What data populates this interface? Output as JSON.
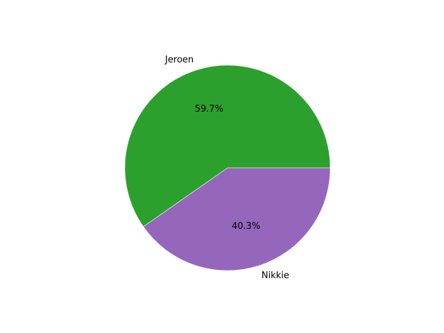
{
  "chart_data": {
    "type": "pie",
    "slices": [
      {
        "label": "Jeroen",
        "percent_label": "59.7%",
        "value": 59.7,
        "color": "#2ca02c"
      },
      {
        "label": "Nikkie",
        "percent_label": "40.3%",
        "value": 40.3,
        "color": "#9467bd"
      }
    ],
    "start_angle": "0 degrees (3 o'clock), counter-clockwise",
    "edge_color": "#ffffff"
  }
}
